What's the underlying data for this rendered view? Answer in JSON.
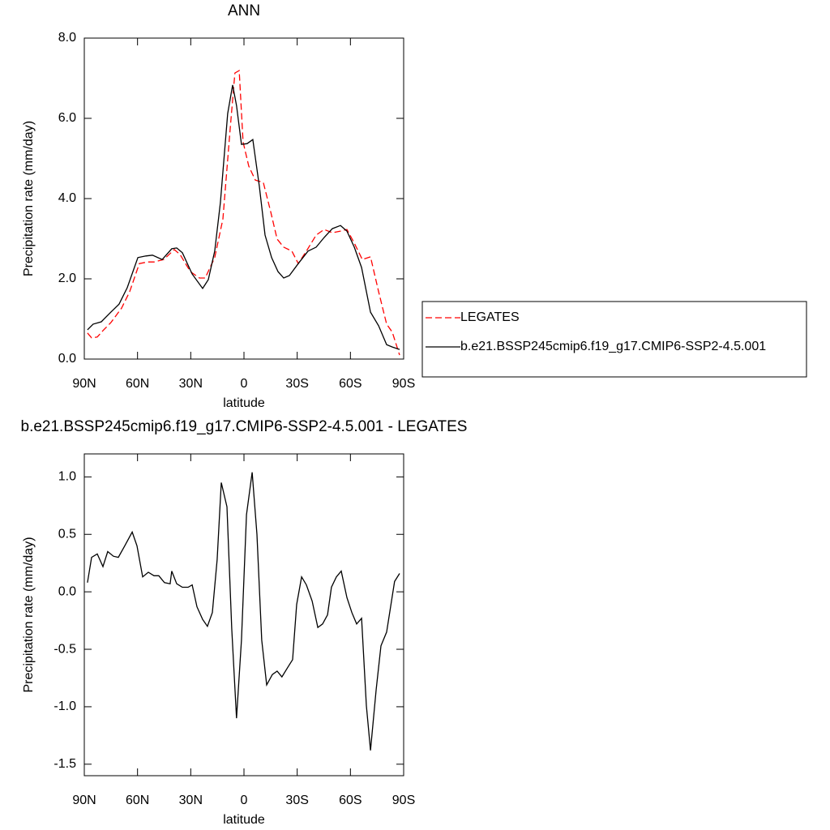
{
  "chart_data": [
    {
      "type": "line",
      "title": "ANN",
      "xlabel": "latitude",
      "ylabel": "Precipitation rate (mm/day)",
      "xlim": [
        90,
        -90
      ],
      "ylim": [
        0,
        8
      ],
      "xticks": [
        {
          "value": 90,
          "label": "90N"
        },
        {
          "value": 60,
          "label": "60N"
        },
        {
          "value": 30,
          "label": "30N"
        },
        0,
        {
          "value": -30,
          "label": "30S"
        },
        {
          "value": -60,
          "label": "60S"
        },
        {
          "value": -90,
          "label": "90S"
        }
      ],
      "yticks": [
        {
          "value": 0,
          "label": "0.0"
        },
        {
          "value": 2,
          "label": "2.0"
        },
        {
          "value": 4,
          "label": "4.0"
        },
        {
          "value": 6,
          "label": "6.0"
        },
        {
          "value": 8,
          "label": "8.0"
        }
      ],
      "legend": "right",
      "series": [
        {
          "name": "LEGATES",
          "color": "#ff0000",
          "dashed": true,
          "x": [
            88.2,
            85.9,
            82.7,
            79.5,
            75,
            69,
            64.4,
            59,
            54.4,
            50.7,
            45.2,
            39.3,
            36.1,
            30.2,
            25.1,
            21.9,
            16.5,
            11.9,
            7.8,
            5.1,
            2.7,
            0.5,
            -2.7,
            -6.4,
            -10.9,
            -15.1,
            -18.7,
            -22.4,
            -27,
            -30.6,
            -35.2,
            -40.7,
            -45.2,
            -49.8,
            -54.4,
            -58,
            -62.2,
            -66.7,
            -71.3,
            -75.9,
            -80.4,
            -83.6,
            -87.7
          ],
          "values": [
            0.65,
            0.53,
            0.55,
            0.71,
            0.91,
            1.27,
            1.68,
            2.38,
            2.42,
            2.42,
            2.48,
            2.73,
            2.61,
            2.18,
            2.02,
            2.02,
            2.53,
            3.49,
            5.72,
            7.13,
            7.19,
            5.41,
            4.81,
            4.46,
            4.4,
            3.66,
            2.99,
            2.79,
            2.69,
            2.38,
            2.69,
            3.09,
            3.23,
            3.15,
            3.19,
            3.23,
            2.89,
            2.48,
            2.55,
            1.68,
            0.87,
            0.67,
            0.1
          ]
        },
        {
          "name": "b.e21.BSSP245cmip6.f19_g17.CMIP6-SSP2-4.5.001",
          "color": "#000000",
          "dashed": false,
          "x": [
            88.2,
            85,
            80.4,
            75,
            70.4,
            65.8,
            59.8,
            55.3,
            51.6,
            46.1,
            40.7,
            37.9,
            34.7,
            29.2,
            23.3,
            20.1,
            16.5,
            13.3,
            9.2,
            6.4,
            4.2,
            1.4,
            -1.8,
            -5,
            -8.7,
            -11.9,
            -15.6,
            -19.2,
            -22.4,
            -25.6,
            -30.6,
            -36.1,
            -40.7,
            -45.2,
            -49.8,
            -54.4,
            -58,
            -62.2,
            -66.3,
            -71.3,
            -75.9,
            -80.4,
            -83.6,
            -87.7
          ],
          "values": [
            0.73,
            0.87,
            0.93,
            1.17,
            1.37,
            1.78,
            2.53,
            2.57,
            2.59,
            2.48,
            2.75,
            2.77,
            2.65,
            2.12,
            1.76,
            1.98,
            2.69,
            3.9,
            6.12,
            6.83,
            6.32,
            5.35,
            5.37,
            5.47,
            4.3,
            3.09,
            2.53,
            2.18,
            2.02,
            2.08,
            2.38,
            2.69,
            2.79,
            3.03,
            3.25,
            3.33,
            3.19,
            2.79,
            2.28,
            1.17,
            0.83,
            0.36,
            0.3,
            0.24
          ]
        }
      ]
    },
    {
      "type": "line",
      "title": "b.e21.BSSP245cmip6.f19_g17.CMIP6-SSP2-4.5.001 - LEGATES",
      "xlabel": "latitude",
      "ylabel": "Precipitation rate (mm/day)",
      "xlim": [
        90,
        -90
      ],
      "ylim": [
        -1.6,
        1.2
      ],
      "xticks": [
        {
          "value": 90,
          "label": "90N"
        },
        {
          "value": 60,
          "label": "60N"
        },
        {
          "value": 30,
          "label": "30N"
        },
        0,
        {
          "value": -30,
          "label": "30S"
        },
        {
          "value": -60,
          "label": "60S"
        },
        {
          "value": -90,
          "label": "90S"
        }
      ],
      "yticks": [
        {
          "value": -1.5,
          "label": "-1.5"
        },
        {
          "value": -1,
          "label": "-1.0"
        },
        {
          "value": -0.5,
          "label": "-0.5"
        },
        {
          "value": 0,
          "label": "0.0"
        },
        {
          "value": 0.5,
          "label": "0.5"
        },
        {
          "value": 1,
          "label": "1.0"
        }
      ],
      "color": "#000000",
      "x": [
        88.2,
        85.9,
        82.7,
        79.5,
        76.8,
        73.6,
        70.8,
        67.2,
        63,
        60.3,
        57.1,
        53.9,
        50.7,
        48,
        44.8,
        41.6,
        40.7,
        37.9,
        34.7,
        31.5,
        29.2,
        26.5,
        23.3,
        20.6,
        17.8,
        15.1,
        12.8,
        9.6,
        6.9,
        4.2,
        1.4,
        -1.4,
        -4.6,
        -7.3,
        -10,
        -12.8,
        -16,
        -18.7,
        -21.4,
        -24.6,
        -27.4,
        -29.7,
        -32.5,
        -35.2,
        -38.4,
        -41.6,
        -44.3,
        -47.1,
        -49.3,
        -52.1,
        -54.8,
        -58,
        -60.8,
        -63.5,
        -66.3,
        -69,
        -71.3,
        -74.5,
        -77.2,
        -80.4,
        -84.9,
        -87.7
      ],
      "values": [
        0.08,
        0.3,
        0.33,
        0.22,
        0.35,
        0.31,
        0.3,
        0.4,
        0.52,
        0.4,
        0.13,
        0.17,
        0.14,
        0.14,
        0.08,
        0.07,
        0.18,
        0.07,
        0.04,
        0.04,
        0.06,
        -0.13,
        -0.24,
        -0.3,
        -0.18,
        0.28,
        0.95,
        0.74,
        -0.32,
        -1.1,
        -0.42,
        0.67,
        1.04,
        0.5,
        -0.42,
        -0.81,
        -0.72,
        -0.69,
        -0.74,
        -0.66,
        -0.59,
        -0.11,
        0.13,
        0.06,
        -0.08,
        -0.31,
        -0.28,
        -0.2,
        0.04,
        0.13,
        0.18,
        -0.05,
        -0.18,
        -0.28,
        -0.23,
        -0.99,
        -1.38,
        -0.85,
        -0.47,
        -0.35,
        0.09,
        0.16
      ]
    }
  ]
}
